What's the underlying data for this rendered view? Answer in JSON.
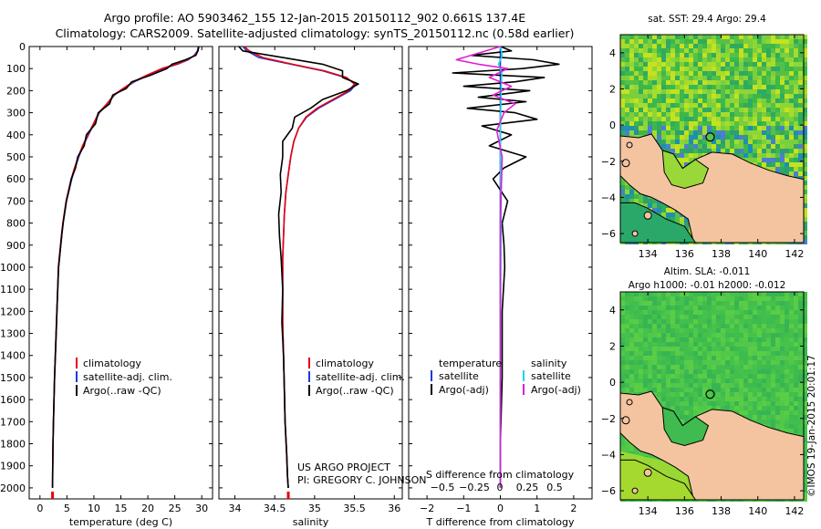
{
  "header": {
    "line1": "Argo profile: AO 5903462_155 12-Jan-2015 20150112_902 0.661S 137.4E",
    "line2": "Climatology: CARS2009. Satellite-adjusted climatology: synTS_20150112.nc (0.58d earlier)"
  },
  "depth_ticks": [
    "0",
    "100",
    "200",
    "300",
    "400",
    "500",
    "600",
    "700",
    "800",
    "900",
    "1000",
    "1100",
    "1200",
    "1300",
    "1400",
    "1500",
    "1600",
    "1700",
    "1800",
    "1900",
    "2000"
  ],
  "project_text": {
    "line1": "US ARGO PROJECT",
    "line2": "PI: GREGORY C. JOHNSON"
  },
  "map_top_title": "sat. SST: 29.4 Argo: 29.4",
  "map_bottom_title1": "Altim. SLA: -0.011",
  "map_bottom_title2": "Argo h1000: -0.01 h2000: -0.012",
  "imos_label": "©IMOS 19-Jan-2015 20:01:17",
  "colors": {
    "climatology": "#e8000b",
    "satellite": "#1f3bd8",
    "argo": "#000000",
    "sal_satellite": "#22d3e6",
    "sal_argo": "#e020d0",
    "land": "#f4c4a0",
    "ocean": "#4cc24a"
  },
  "chart_data": [
    {
      "type": "line",
      "id": "temperature",
      "xlabel": "temperature (deg C)",
      "xlim": [
        -2,
        32
      ],
      "xticks": [
        0,
        5,
        10,
        15,
        20,
        25,
        30
      ],
      "xtick_labels": [
        "0",
        "5",
        "10",
        "15",
        "20",
        "25",
        "30"
      ],
      "ylim": [
        2050,
        0
      ],
      "legend": [
        "climatology",
        "satellite-adj. clim.",
        "Argo(..raw -QC)"
      ],
      "series": [
        {
          "name": "satellite-adj. clim.",
          "color": "#1f3bd8",
          "x": [
            29.4,
            29.2,
            28.6,
            27.5,
            25.5,
            22.8,
            20.0,
            17.5,
            15.5,
            13.8,
            12.5,
            11.0,
            10.0,
            9.0,
            8.0,
            7.2,
            6.5,
            5.9,
            5.4,
            4.9,
            4.6,
            4.3,
            4.05,
            3.85,
            3.65,
            3.45,
            3.3,
            3.15,
            3.0,
            2.85,
            2.7,
            2.6,
            2.5,
            2.42,
            2.37,
            2.33
          ],
          "y": [
            0,
            20,
            40,
            60,
            80,
            100,
            130,
            160,
            190,
            220,
            260,
            300,
            350,
            400,
            450,
            500,
            550,
            600,
            650,
            700,
            750,
            800,
            850,
            900,
            950,
            1000,
            1100,
            1200,
            1300,
            1400,
            1500,
            1600,
            1700,
            1800,
            1900,
            2000
          ]
        },
        {
          "name": "climatology",
          "color": "#e8000b",
          "x": [
            29.5,
            29.3,
            28.7,
            27.3,
            25.3,
            22.6,
            19.8,
            17.3,
            15.4,
            13.7,
            12.4,
            10.9,
            9.9,
            8.9,
            7.9,
            7.1,
            6.4,
            5.8,
            5.3,
            4.85,
            4.55,
            4.25,
            4.0,
            3.8,
            3.6,
            3.42,
            3.27,
            3.12,
            2.98,
            2.84,
            2.7,
            2.6,
            2.5,
            2.42,
            2.37,
            2.33
          ],
          "y": [
            0,
            20,
            40,
            60,
            80,
            100,
            130,
            160,
            190,
            220,
            260,
            300,
            350,
            400,
            450,
            500,
            550,
            600,
            650,
            700,
            750,
            800,
            850,
            900,
            950,
            1000,
            1100,
            1200,
            1300,
            1400,
            1500,
            1600,
            1700,
            1800,
            1900,
            2000
          ]
        },
        {
          "name": "Argo(..raw -QC)",
          "color": "#000000",
          "x": [
            29.4,
            29.3,
            28.9,
            27.0,
            24.5,
            23.5,
            20.5,
            17.0,
            16.0,
            13.5,
            12.9,
            10.8,
            10.3,
            8.6,
            8.2,
            7.0,
            6.6,
            5.8,
            5.4,
            4.9,
            4.6,
            4.3,
            4.05,
            3.85,
            3.65,
            3.45,
            3.3,
            3.15,
            3.0,
            2.85,
            2.7,
            2.6,
            2.5,
            2.42,
            2.37,
            2.33
          ],
          "y": [
            0,
            20,
            40,
            60,
            80,
            100,
            130,
            160,
            190,
            220,
            260,
            300,
            350,
            400,
            450,
            500,
            550,
            600,
            650,
            700,
            750,
            800,
            850,
            900,
            950,
            1000,
            1100,
            1200,
            1300,
            1400,
            1500,
            1600,
            1700,
            1800,
            1900,
            2000
          ]
        }
      ]
    },
    {
      "type": "line",
      "id": "salinity",
      "xlabel": "salinity",
      "xlim": [
        33.8,
        36.1
      ],
      "xticks": [
        34,
        34.5,
        35,
        35.5,
        36
      ],
      "xtick_labels": [
        "34",
        "34.5",
        "35",
        "35.5",
        "36"
      ],
      "ylim": [
        2050,
        0
      ],
      "legend": [
        "climatology",
        "satellite-adj. clim.",
        "Argo(..raw -QC)"
      ],
      "series": [
        {
          "name": "satellite-adj. clim.",
          "color": "#1f3bd8",
          "x": [
            34.1,
            34.15,
            34.3,
            34.7,
            35.1,
            35.38,
            35.52,
            35.45,
            35.25,
            35.05,
            34.9,
            34.8,
            34.74,
            34.7,
            34.67,
            34.64,
            34.62,
            34.61,
            34.6,
            34.6,
            34.6,
            34.61,
            34.62,
            34.63,
            34.65,
            34.66,
            34.67
          ],
          "y": [
            0,
            20,
            50,
            80,
            110,
            140,
            170,
            200,
            240,
            280,
            320,
            370,
            430,
            500,
            580,
            660,
            760,
            860,
            960,
            1100,
            1250,
            1400,
            1550,
            1700,
            1850,
            1950,
            2000
          ]
        },
        {
          "name": "climatology",
          "color": "#e8000b",
          "x": [
            34.12,
            34.18,
            34.35,
            34.72,
            35.12,
            35.4,
            35.5,
            35.43,
            35.23,
            35.03,
            34.89,
            34.8,
            34.74,
            34.7,
            34.67,
            34.64,
            34.62,
            34.61,
            34.6,
            34.6,
            34.6,
            34.61,
            34.62,
            34.63,
            34.65,
            34.66,
            34.67
          ],
          "y": [
            0,
            20,
            50,
            80,
            110,
            140,
            170,
            200,
            240,
            280,
            320,
            370,
            430,
            500,
            580,
            660,
            760,
            860,
            960,
            1100,
            1250,
            1400,
            1550,
            1700,
            1850,
            1950,
            2000
          ]
        },
        {
          "name": "Argo(..raw -QC)",
          "color": "#000000",
          "x": [
            34.05,
            34.1,
            34.6,
            35.1,
            35.35,
            35.35,
            35.55,
            35.4,
            35.1,
            34.95,
            34.75,
            34.72,
            34.6,
            34.6,
            34.57,
            34.58,
            34.55,
            34.56,
            34.58,
            34.6,
            34.59,
            34.61,
            34.62,
            34.63,
            34.65,
            34.66,
            34.67
          ],
          "y": [
            0,
            20,
            50,
            80,
            110,
            140,
            170,
            200,
            240,
            280,
            320,
            370,
            430,
            500,
            580,
            660,
            760,
            860,
            960,
            1100,
            1250,
            1400,
            1550,
            1700,
            1850,
            1950,
            2000
          ]
        }
      ]
    },
    {
      "type": "line",
      "id": "differences",
      "xlabel": "T difference from climatology",
      "xlim": [
        -2.5,
        2.5
      ],
      "xticks": [
        -2,
        -1,
        0,
        1,
        2
      ],
      "xtick_labels": [
        "−2",
        "−1",
        "0",
        "1",
        "2"
      ],
      "top_axis_label": "S difference from climatology",
      "top_ticks": [
        "−0.5",
        "−0.25",
        "0",
        "0.25",
        "0.5"
      ],
      "ylim": [
        2050,
        0
      ],
      "legend_titles": [
        "temperature",
        "salinity"
      ],
      "legend": [
        "satellite",
        "Argo(-adj)",
        "satellite",
        "Argo(-adj)"
      ],
      "series": [
        {
          "name": "temperature satellite",
          "color": "#1f3bd8",
          "x": [
            0,
            0,
            0,
            0,
            0
          ],
          "y": [
            0,
            500,
            1000,
            1500,
            2000
          ]
        },
        {
          "name": "temperature Argo(-adj)",
          "color": "#000000",
          "x": [
            0,
            0.3,
            -0.8,
            0.9,
            1.6,
            0.6,
            -1.3,
            1.2,
            0.4,
            -1.0,
            0.8,
            -0.6,
            0.7,
            -0.9,
            0.4,
            1.0,
            -0.5,
            0.3,
            -0.3,
            0.7,
            0.1,
            -0.2,
            0.2,
            0.05,
            0.1,
            0.12,
            0.05,
            0.05,
            0.0,
            0.0
          ],
          "y": [
            0,
            20,
            40,
            60,
            80,
            100,
            120,
            140,
            160,
            180,
            200,
            230,
            250,
            280,
            300,
            330,
            360,
            400,
            450,
            500,
            550,
            600,
            700,
            800,
            900,
            1000,
            1200,
            1500,
            1800,
            2000
          ]
        },
        {
          "name": "salinity satellite",
          "color": "#22d3e6",
          "x": [
            0,
            0.05,
            -0.05,
            0.04,
            0.02,
            0,
            0.02,
            0,
            0
          ],
          "y": [
            0,
            40,
            80,
            120,
            200,
            400,
            800,
            1400,
            2000
          ]
        },
        {
          "name": "salinity Argo(-adj)",
          "color": "#e020d0",
          "x": [
            0,
            -1.2,
            -0.6,
            0.2,
            -0.3,
            0.3,
            -0.2,
            0.4,
            0.1,
            -0.1,
            0.05,
            0,
            0
          ],
          "y": [
            0,
            60,
            80,
            100,
            140,
            180,
            220,
            260,
            300,
            380,
            500,
            800,
            2000
          ]
        }
      ]
    }
  ],
  "maps": {
    "x_ticks": [
      "134",
      "136",
      "138",
      "140",
      "142"
    ],
    "y_ticks": [
      "4",
      "2",
      "0",
      "−2",
      "−4",
      "−6"
    ]
  }
}
